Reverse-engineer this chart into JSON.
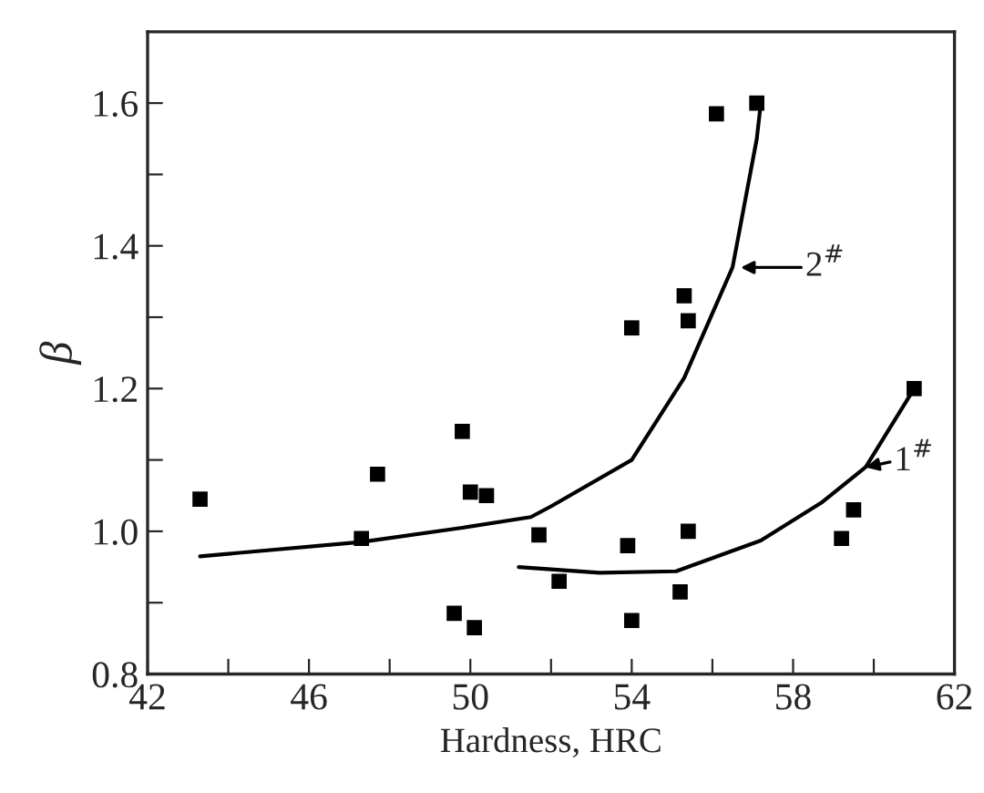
{
  "chart_data": {
    "type": "scatter",
    "xlabel": "Hardness, HRC",
    "ylabel": "β",
    "xlim": [
      42,
      62
    ],
    "ylim": [
      0.8,
      1.7
    ],
    "xticks": [
      42,
      {
        "value": 44,
        "label": null
      },
      46,
      {
        "value": 48,
        "label": null
      },
      50,
      {
        "value": 52,
        "label": null
      },
      54,
      {
        "value": 56,
        "label": null
      },
      58,
      {
        "value": 60,
        "label": null
      },
      62
    ],
    "yticks": [
      {
        "value": 0.8,
        "label": "0.8"
      },
      {
        "value": 0.9,
        "label": null
      },
      {
        "value": 1.0,
        "label": "1.0"
      },
      {
        "value": 1.1,
        "label": null
      },
      {
        "value": 1.2,
        "label": "1.2"
      },
      {
        "value": 1.3,
        "label": null
      },
      {
        "value": 1.4,
        "label": "1.4"
      },
      {
        "value": 1.5,
        "label": null
      },
      {
        "value": 1.6,
        "label": "1.6"
      }
    ],
    "grid": false,
    "legend": false,
    "series": [
      {
        "marker": "square",
        "color": "#000000",
        "x": [
          43.3,
          47.3,
          47.7,
          49.8,
          50.0,
          50.4,
          49.6,
          50.1,
          51.7,
          52.2,
          53.9,
          54.0,
          54.0,
          55.3,
          55.4,
          55.4,
          55.2,
          56.1,
          57.1,
          59.2,
          59.5,
          61.0
        ],
        "values": [
          1.045,
          0.99,
          1.08,
          1.14,
          1.055,
          1.05,
          0.885,
          0.865,
          0.995,
          0.93,
          0.98,
          0.875,
          1.285,
          1.33,
          1.295,
          1.0,
          0.915,
          1.585,
          1.6,
          0.99,
          1.03,
          1.2
        ]
      },
      {
        "type": "line",
        "color": "#000000",
        "marker": "none",
        "line_style": "solid",
        "x": [
          43.3,
          47.3,
          49.8,
          51.5,
          52.0,
          54.0,
          55.3,
          56.5,
          57.1,
          57.2
        ],
        "values": [
          0.965,
          0.985,
          1.005,
          1.02,
          1.035,
          1.1,
          1.215,
          1.37,
          1.55,
          1.6
        ]
      },
      {
        "type": "line",
        "color": "#000000",
        "marker": "none",
        "line_style": "solid",
        "x": [
          51.2,
          53.2,
          55.1,
          57.2,
          58.7,
          59.8,
          61.0
        ],
        "values": [
          0.95,
          0.942,
          0.944,
          0.987,
          1.04,
          1.09,
          1.2
        ]
      }
    ],
    "annotations": [
      "2$^{#}$",
      "1$^{#}$"
    ]
  }
}
